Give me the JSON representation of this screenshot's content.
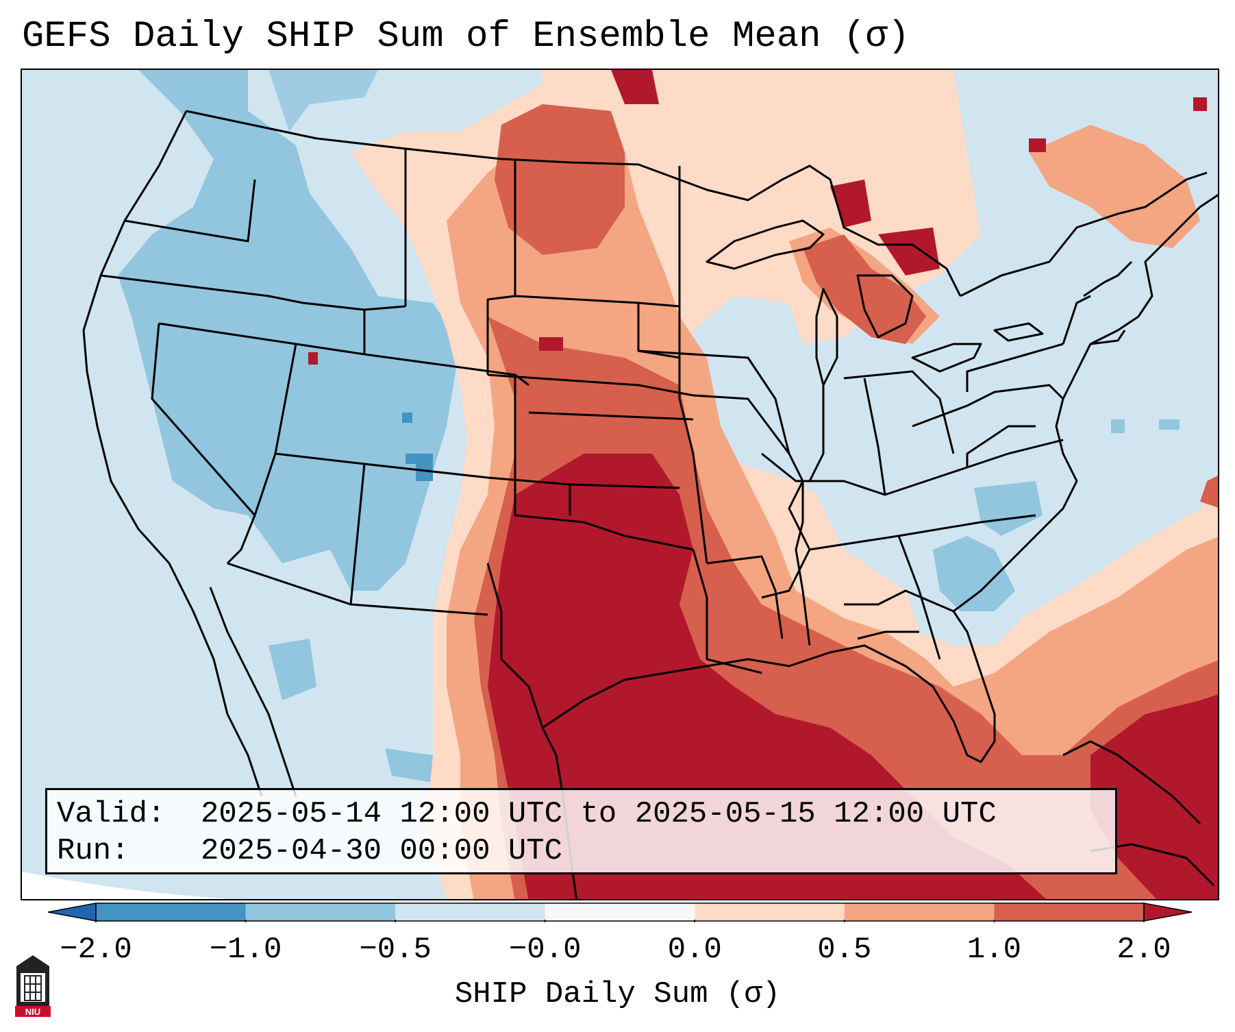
{
  "title": "GEFS Daily SHIP Sum of Ensemble Mean (σ)",
  "info": {
    "valid_label": "Valid:",
    "valid_value": "2025-05-14 12:00 UTC to 2025-05-15 12:00 UTC",
    "run_label": "Run:",
    "run_value": "2025-04-30 00:00 UTC"
  },
  "colorbar": {
    "label": "SHIP Daily Sum (σ)",
    "ticks": [
      "−2.0",
      "−1.0",
      "−0.5",
      "−0.0",
      "0.0",
      "0.5",
      "1.0",
      "2.0"
    ],
    "colors": [
      "#2166ac",
      "#4393c3",
      "#92c5de",
      "#d1e5f0",
      "#f7f7f7",
      "#fddbc7",
      "#f4a582",
      "#d6604d",
      "#b2182b"
    ],
    "extend": "both"
  },
  "map": {
    "region": "Contiguous United States, Gulf of Mexico and surrounding areas",
    "variable": "SHIP anomaly (σ)",
    "features": [
      "state borders",
      "coastlines",
      "country borders",
      "Great Lakes"
    ]
  },
  "logo": {
    "text": "NIU",
    "name": "niu-logo-icon"
  }
}
